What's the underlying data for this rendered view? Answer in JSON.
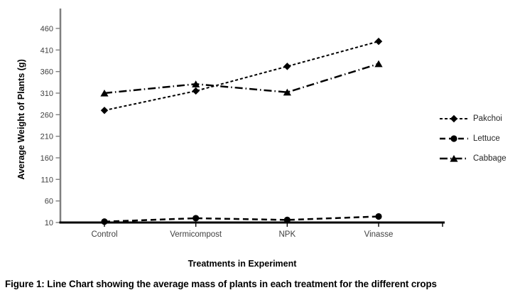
{
  "figure": {
    "caption": "Figure 1: Line Chart showing the average mass of plants in each treatment for the different crops"
  },
  "chart_data": {
    "type": "line",
    "title": "",
    "xlabel": "Treatments in Experiment",
    "ylabel": "Average Weight of Plants (g)",
    "categories": [
      "Control",
      "Vermicompost",
      "NPK",
      "Vinasse"
    ],
    "series": [
      {
        "name": "Pakchoi",
        "marker": "diamond",
        "dash": "short-dash",
        "values": [
          270,
          315,
          372,
          430
        ]
      },
      {
        "name": "Lettuce",
        "marker": "circle",
        "dash": "long-dash",
        "values": [
          12,
          20,
          16,
          24
        ]
      },
      {
        "name": "Cabbage",
        "marker": "triangle",
        "dash": "dash-dot",
        "values": [
          310,
          331,
          312,
          378
        ]
      }
    ],
    "yticks": [
      10,
      60,
      110,
      160,
      210,
      260,
      310,
      360,
      410,
      460
    ],
    "ylim": [
      10,
      475
    ],
    "grid": false,
    "legend_position": "right",
    "series_color": "#000000",
    "y_axis_color": "#7f7f7f",
    "x_axis_color": "#000000",
    "tick_label_color": "#3f3f3f"
  }
}
